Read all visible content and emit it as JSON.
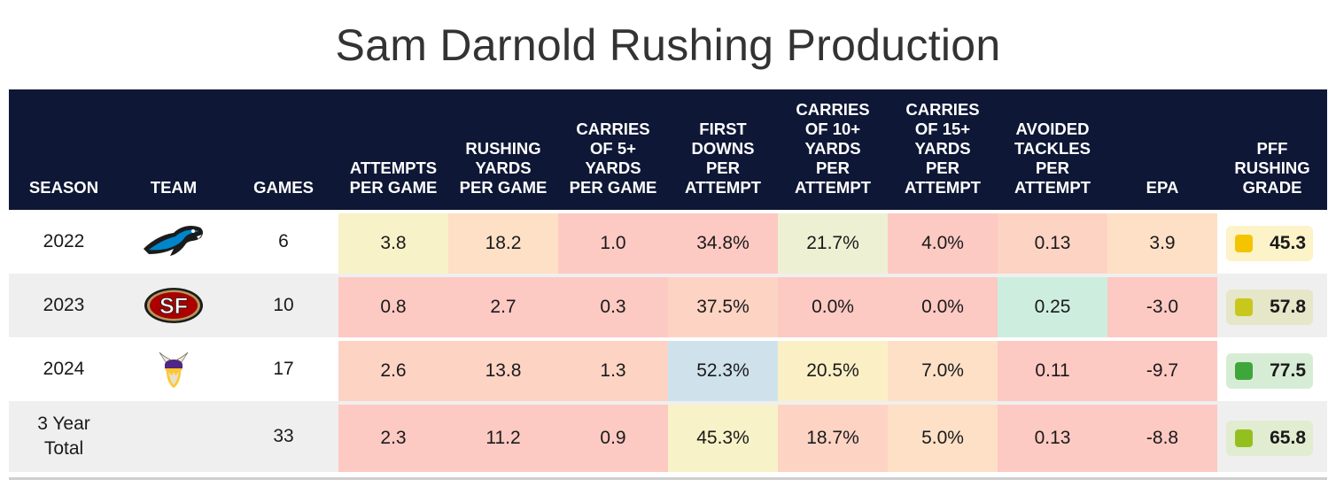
{
  "title": "Sam Darnold Rushing Production",
  "colors": {
    "header_bg": "#0e1735",
    "red": "#fdc9c3",
    "salmon": "#fdd3c4",
    "peach": "#fde0c6",
    "cream": "#fbefc6",
    "lightyellow": "#f8f2c8",
    "lightgreen": "#eef0d4",
    "mint": "#cdeede",
    "lightblue": "#cfe2ec",
    "grade_yellow": "#f5c400",
    "grade_olive": "#c8c71c",
    "grade_green": "#3fa63b",
    "grade_lime": "#93c01f"
  },
  "chart_data": {
    "type": "table",
    "title": "Sam Darnold Rushing Production",
    "columns": [
      "SEASON",
      "TEAM",
      "GAMES",
      "ATTEMPTS\nPER GAME",
      "RUSHING\nYARDS\nPER GAME",
      "CARRIES\nOF 5+\nYARDS\nPER GAME",
      "FIRST\nDOWNS\nPER\nATTEMPT",
      "CARRIES\nOF 10+\nYARDS\nPER\nATTEMPT",
      "CARRIES\nOF 15+\nYARDS\nPER\nATTEMPT",
      "AVOIDED\nTACKLES\nPER\nATTEMPT",
      "EPA",
      "PFF\nRUSHING\nGRADE"
    ],
    "rows": [
      {
        "season": "2022",
        "team_logo": "panthers-logo",
        "games": "6",
        "values": [
          "3.8",
          "18.2",
          "1.0",
          "34.8%",
          "21.7%",
          "4.0%",
          "0.13",
          "3.9"
        ],
        "shades": [
          "lightyellow",
          "peach",
          "red",
          "red",
          "lightgreen",
          "red",
          "salmon",
          "peach"
        ],
        "grade": "45.3",
        "grade_color": "grade_yellow",
        "grade_bg": "#fdf3c9"
      },
      {
        "season": "2023",
        "team_logo": "49ers-logo",
        "games": "10",
        "values": [
          "0.8",
          "2.7",
          "0.3",
          "37.5%",
          "0.0%",
          "0.0%",
          "0.25",
          "-3.0"
        ],
        "shades": [
          "red",
          "red",
          "red",
          "salmon",
          "red",
          "red",
          "mint",
          "red"
        ],
        "grade": "57.8",
        "grade_color": "grade_olive",
        "grade_bg": "#e6e6c8"
      },
      {
        "season": "2024",
        "team_logo": "vikings-logo",
        "games": "17",
        "values": [
          "2.6",
          "13.8",
          "1.3",
          "52.3%",
          "20.5%",
          "7.0%",
          "0.11",
          "-9.7"
        ],
        "shades": [
          "salmon",
          "salmon",
          "salmon",
          "lightblue",
          "cream",
          "peach",
          "red",
          "red"
        ],
        "grade": "77.5",
        "grade_color": "grade_green",
        "grade_bg": "#d7ecd5"
      },
      {
        "season": "3 Year\nTotal",
        "team_logo": "",
        "games": "33",
        "values": [
          "2.3",
          "11.2",
          "0.9",
          "45.3%",
          "18.7%",
          "5.0%",
          "0.13",
          "-8.8"
        ],
        "shades": [
          "red",
          "red",
          "red",
          "lightyellow",
          "salmon",
          "peach",
          "red",
          "red"
        ],
        "grade": "65.8",
        "grade_color": "grade_lime",
        "grade_bg": "#e2ecd0"
      }
    ]
  }
}
